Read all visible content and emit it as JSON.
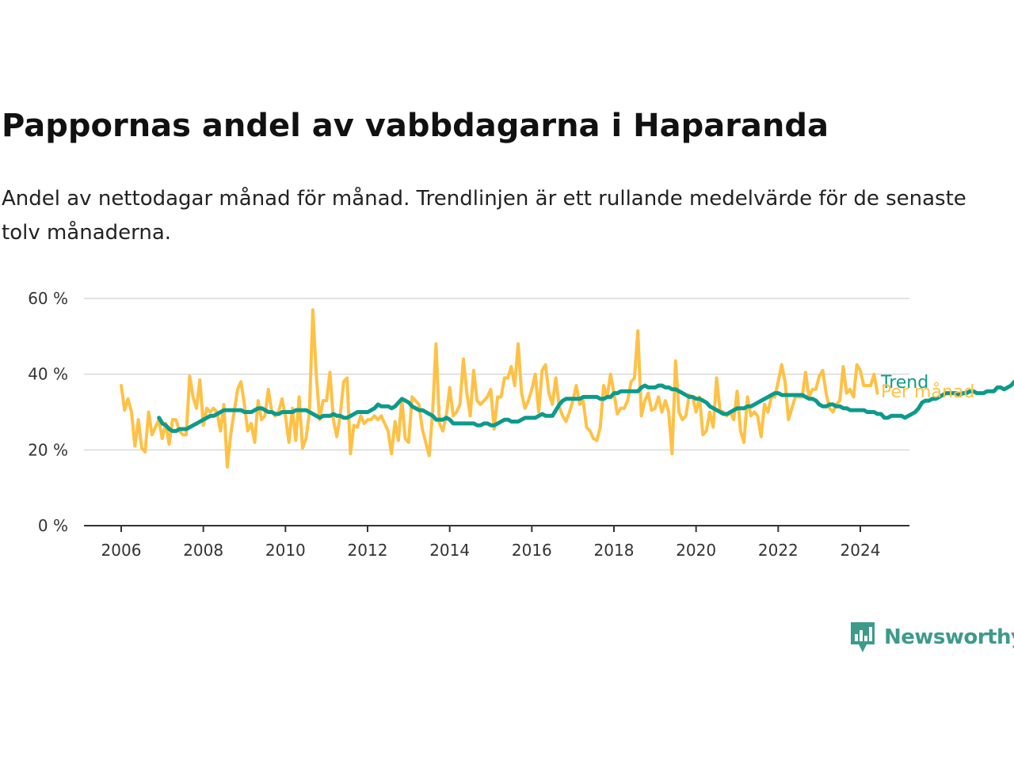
{
  "chart_data": {
    "type": "line",
    "title": "Pappornas andel av vabbdagarna i Haparanda",
    "subtitle": "Andel av nettodagar månad för månad. Trendlinjen är ett rullande medelvärde för de senaste tolv månaderna.",
    "ylim": [
      0,
      60
    ],
    "yticks": [
      0,
      20,
      40,
      60
    ],
    "ytick_labels": [
      "0 %",
      "20 %",
      "40 %",
      "60 %"
    ],
    "xlim": [
      2006,
      2025.25
    ],
    "xticks": [
      2006,
      2008,
      2010,
      2012,
      2014,
      2016,
      2018,
      2020,
      2022,
      2024
    ],
    "xtick_labels": [
      "2006",
      "2008",
      "2010",
      "2012",
      "2014",
      "2016",
      "2018",
      "2020",
      "2022",
      "2024"
    ],
    "grid": true,
    "series": [
      {
        "name": "Per månad",
        "color": "#ffc145",
        "x_start": 2006.0,
        "x_step_months": 1,
        "values": [
          37,
          30.5,
          33.5,
          30,
          21,
          28,
          20.5,
          19.5,
          30,
          24,
          26,
          28,
          23,
          27,
          21.5,
          28,
          28,
          25,
          24,
          24,
          39.5,
          34,
          31,
          38.5,
          26.5,
          31,
          30,
          31,
          30,
          25,
          32,
          15.5,
          24,
          30,
          36,
          38,
          32,
          25,
          27,
          22,
          33,
          28,
          29,
          36,
          30,
          29,
          30,
          33.5,
          29,
          22,
          31,
          22.5,
          34,
          20.5,
          23,
          30,
          57,
          40,
          28,
          33,
          33,
          40.5,
          28,
          23.5,
          29,
          38,
          39,
          19,
          26.5,
          26,
          29,
          27,
          28,
          28,
          29,
          28,
          29,
          27,
          25,
          19,
          27.5,
          22.5,
          33.5,
          23,
          22,
          34,
          33,
          32,
          25.5,
          22,
          18.5,
          30,
          48,
          27,
          25,
          29,
          36.5,
          29,
          30,
          32,
          44,
          35,
          29,
          41,
          33,
          32,
          33,
          34,
          36,
          25.5,
          34,
          34,
          39,
          39,
          42,
          37,
          48,
          35,
          31,
          33,
          36,
          40,
          30,
          41,
          42.5,
          35,
          32,
          39,
          31.5,
          29,
          27.5,
          30,
          33,
          37,
          32,
          33,
          26,
          25,
          23,
          22.5,
          26,
          37,
          34,
          40,
          35,
          29.5,
          31,
          31,
          33,
          38,
          39,
          51.5,
          29,
          33,
          35,
          30.5,
          31,
          34,
          30,
          33,
          30,
          19,
          43.5,
          30,
          28,
          29,
          34.5,
          34,
          30,
          34,
          24,
          25,
          30,
          26,
          39,
          30.5,
          30,
          29,
          30,
          28,
          35.5,
          25,
          22,
          34,
          29,
          30,
          29,
          23.5,
          32,
          30,
          34,
          34,
          38,
          42.5,
          38,
          28,
          31,
          34,
          34,
          34,
          40.5,
          34,
          36,
          36,
          39.5,
          41,
          35,
          31,
          30,
          32,
          33,
          42,
          35,
          36,
          34,
          42.5,
          41,
          37,
          37,
          37,
          40,
          35
        ]
      },
      {
        "name": "Trend",
        "color": "#0c9a8b",
        "x_start": 2006.92,
        "x_step_months": 1,
        "values": [
          28.5,
          27,
          26.5,
          25.5,
          25,
          25,
          25.5,
          25.5,
          25.5,
          26,
          26.5,
          27,
          27.5,
          28,
          28.5,
          29,
          29,
          29.5,
          30,
          30.5,
          30.5,
          30.5,
          30.5,
          30.5,
          30.5,
          30,
          30,
          30,
          30.5,
          31,
          31,
          30.5,
          30,
          30,
          29.5,
          29.5,
          30,
          30,
          30,
          30,
          30.5,
          30.5,
          30.5,
          30.5,
          30,
          29.5,
          29,
          28.5,
          29,
          29,
          29,
          29.5,
          29,
          29,
          28.5,
          28.5,
          29,
          29.5,
          30,
          30,
          30,
          30,
          30.5,
          31,
          32,
          31.5,
          31.5,
          31.5,
          31,
          31.5,
          32.5,
          33.5,
          33,
          32.5,
          31.5,
          31,
          30.5,
          30.5,
          30,
          29.5,
          29,
          28,
          28,
          28,
          28.5,
          28,
          27,
          27,
          27,
          27,
          27,
          27,
          27,
          26.5,
          26.5,
          27,
          27,
          26.5,
          26.5,
          27,
          27.5,
          28,
          28,
          27.5,
          27.5,
          27.5,
          28,
          28.5,
          28.5,
          28.5,
          28.5,
          29,
          29.5,
          29,
          29,
          29,
          30.5,
          32,
          33,
          33.5,
          33.5,
          33.5,
          33.5,
          33.5,
          34,
          34,
          34,
          34,
          34,
          33.5,
          33.5,
          34,
          34,
          35,
          35,
          35.5,
          35.5,
          35.5,
          35.5,
          35.5,
          35.5,
          36.5,
          37,
          36.5,
          36.5,
          36.5,
          37,
          37,
          36.5,
          36.5,
          36,
          36,
          35.5,
          35,
          34.5,
          34,
          34,
          33.5,
          33.5,
          33,
          32.5,
          31.5,
          31,
          30.5,
          30,
          29.5,
          29.5,
          30,
          30.5,
          31,
          31,
          31,
          31.5,
          31.5,
          32,
          32.5,
          33,
          33.5,
          34,
          34.5,
          35,
          35,
          34.5,
          34.5,
          34.5,
          34.5,
          34.5,
          34.5,
          34.5,
          34,
          33.5,
          33.5,
          33,
          32,
          31.5,
          31.5,
          32,
          32,
          31.5,
          31.5,
          31,
          31,
          30.5,
          30.5,
          30.5,
          30.5,
          30.5,
          30,
          30,
          30,
          29.5,
          29.5,
          28.5,
          28.5,
          29,
          29,
          29,
          29,
          28.5,
          29,
          29.5,
          30,
          31,
          32.5,
          33,
          33,
          33.5,
          33.5,
          34,
          34.5,
          35,
          35,
          35,
          35,
          34.5,
          35,
          35,
          35.5,
          35.5,
          35,
          35,
          35,
          35.5,
          35.5,
          35.5,
          36.5,
          36.5,
          36,
          36.5,
          37,
          38
        ]
      }
    ]
  },
  "brand": {
    "name": "Newsworthy"
  }
}
